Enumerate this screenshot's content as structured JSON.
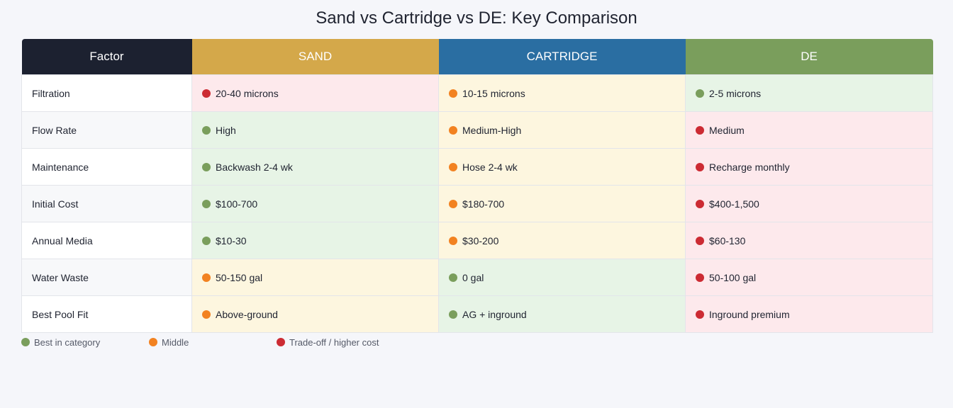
{
  "chart_data": {
    "type": "table",
    "title": "Sand vs Cartridge vs DE: Key Comparison",
    "columns": [
      "Factor",
      "SAND",
      "CARTRIDGE",
      "DE"
    ],
    "header_colors": [
      "#1c2130",
      "#d4a84a",
      "#2a6ea2",
      "#7a9e5c"
    ],
    "rows": [
      {
        "factor": "Filtration",
        "cells": [
          {
            "text": "20-40 microns",
            "rating": "bad"
          },
          {
            "text": "10-15 microns",
            "rating": "mid"
          },
          {
            "text": "2-5 microns",
            "rating": "good"
          }
        ]
      },
      {
        "factor": "Flow Rate",
        "cells": [
          {
            "text": "High",
            "rating": "good"
          },
          {
            "text": "Medium-High",
            "rating": "mid"
          },
          {
            "text": "Medium",
            "rating": "bad"
          }
        ]
      },
      {
        "factor": "Maintenance",
        "cells": [
          {
            "text": "Backwash 2-4 wk",
            "rating": "good"
          },
          {
            "text": "Hose 2-4 wk",
            "rating": "mid"
          },
          {
            "text": "Recharge monthly",
            "rating": "bad"
          }
        ]
      },
      {
        "factor": "Initial Cost",
        "cells": [
          {
            "text": "$100-700",
            "rating": "good"
          },
          {
            "text": "$180-700",
            "rating": "mid"
          },
          {
            "text": "$400-1,500",
            "rating": "bad"
          }
        ]
      },
      {
        "factor": "Annual Media",
        "cells": [
          {
            "text": "$10-30",
            "rating": "good"
          },
          {
            "text": "$30-200",
            "rating": "mid"
          },
          {
            "text": "$60-130",
            "rating": "bad"
          }
        ]
      },
      {
        "factor": "Water Waste",
        "cells": [
          {
            "text": "50-150 gal",
            "rating": "mid"
          },
          {
            "text": "0 gal",
            "rating": "good"
          },
          {
            "text": "50-100 gal",
            "rating": "bad"
          }
        ]
      },
      {
        "factor": "Best Pool Fit",
        "cells": [
          {
            "text": "Above-ground",
            "rating": "mid"
          },
          {
            "text": "AG + inground",
            "rating": "good"
          },
          {
            "text": "Inground premium",
            "rating": "bad"
          }
        ]
      }
    ],
    "legend": [
      {
        "rating": "good",
        "label": "Best in category",
        "color": "#7a9e5c"
      },
      {
        "rating": "mid",
        "label": "Middle",
        "color": "#f28221"
      },
      {
        "rating": "bad",
        "label": "Trade-off / higher cost",
        "color": "#cc2b33"
      }
    ]
  }
}
